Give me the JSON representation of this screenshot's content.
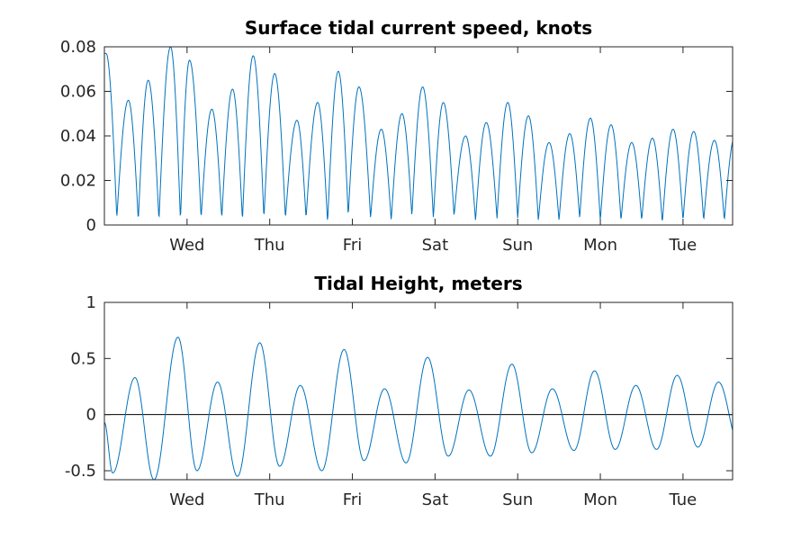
{
  "chart_data": [
    {
      "type": "line",
      "title": "Surface tidal current speed, knots",
      "xlabel": "",
      "ylabel": "",
      "ylim": [
        0,
        0.08
      ],
      "yticks": [
        "0",
        "0.02",
        "0.04",
        "0.06",
        "0.08"
      ],
      "xlim_days": [
        0,
        7.6
      ],
      "xticks": [
        {
          "label": "Wed",
          "day": 1
        },
        {
          "label": "Thu",
          "day": 2
        },
        {
          "label": "Fri",
          "day": 3
        },
        {
          "label": "Sat",
          "day": 4
        },
        {
          "label": "Sun",
          "day": 5
        },
        {
          "label": "Mon",
          "day": 6
        },
        {
          "label": "Tue",
          "day": 7
        }
      ],
      "grid": false,
      "color": "#0072bd",
      "series": [
        {
          "peaks": [
            {
              "day": 0.02,
              "value": 0.077
            },
            {
              "day": 0.29,
              "value": 0.056
            },
            {
              "day": 0.53,
              "value": 0.065
            },
            {
              "day": 0.8,
              "value": 0.08
            },
            {
              "day": 1.03,
              "value": 0.074
            },
            {
              "day": 1.3,
              "value": 0.052
            },
            {
              "day": 1.55,
              "value": 0.061
            },
            {
              "day": 1.8,
              "value": 0.076
            },
            {
              "day": 2.06,
              "value": 0.068
            },
            {
              "day": 2.33,
              "value": 0.047
            },
            {
              "day": 2.58,
              "value": 0.055
            },
            {
              "day": 2.83,
              "value": 0.069
            },
            {
              "day": 3.08,
              "value": 0.062
            },
            {
              "day": 3.35,
              "value": 0.043
            },
            {
              "day": 3.6,
              "value": 0.05
            },
            {
              "day": 3.85,
              "value": 0.062
            },
            {
              "day": 4.1,
              "value": 0.055
            },
            {
              "day": 4.37,
              "value": 0.04
            },
            {
              "day": 4.62,
              "value": 0.046
            },
            {
              "day": 4.88,
              "value": 0.055
            },
            {
              "day": 5.13,
              "value": 0.049
            },
            {
              "day": 5.38,
              "value": 0.037
            },
            {
              "day": 5.63,
              "value": 0.041
            },
            {
              "day": 5.88,
              "value": 0.048
            },
            {
              "day": 6.13,
              "value": 0.045
            },
            {
              "day": 6.38,
              "value": 0.037
            },
            {
              "day": 6.63,
              "value": 0.039
            },
            {
              "day": 6.88,
              "value": 0.043
            },
            {
              "day": 7.13,
              "value": 0.042
            },
            {
              "day": 7.38,
              "value": 0.038
            },
            {
              "day": 7.63,
              "value": 0.04
            }
          ],
          "minima": [
            {
              "day": 0.15,
              "value": 0.003
            },
            {
              "day": 0.41,
              "value": 0.002
            },
            {
              "day": 0.66,
              "value": 0.002
            },
            {
              "day": 0.92,
              "value": 0.002
            },
            {
              "day": 1.17,
              "value": 0.003
            },
            {
              "day": 1.42,
              "value": 0.003
            },
            {
              "day": 1.67,
              "value": 0.002
            },
            {
              "day": 1.93,
              "value": 0.003
            },
            {
              "day": 2.19,
              "value": 0.003
            },
            {
              "day": 2.44,
              "value": 0.003
            },
            {
              "day": 2.7,
              "value": 0.001
            },
            {
              "day": 2.95,
              "value": 0.004
            },
            {
              "day": 3.22,
              "value": 0.003
            },
            {
              "day": 3.47,
              "value": 0.002
            },
            {
              "day": 3.72,
              "value": 0.004
            },
            {
              "day": 3.98,
              "value": 0.003
            },
            {
              "day": 4.23,
              "value": 0.004
            },
            {
              "day": 4.49,
              "value": 0.002
            },
            {
              "day": 4.75,
              "value": 0.003
            },
            {
              "day": 5.0,
              "value": 0.003
            },
            {
              "day": 5.25,
              "value": 0.002
            },
            {
              "day": 5.5,
              "value": 0.002
            },
            {
              "day": 5.75,
              "value": 0.003
            },
            {
              "day": 6.0,
              "value": 0.002
            },
            {
              "day": 6.25,
              "value": 0.002
            },
            {
              "day": 6.5,
              "value": 0.002
            },
            {
              "day": 6.75,
              "value": 0.001
            },
            {
              "day": 7.0,
              "value": 0.002
            },
            {
              "day": 7.25,
              "value": 0.002
            },
            {
              "day": 7.5,
              "value": 0.002
            }
          ],
          "end_value": 0.028
        }
      ]
    },
    {
      "type": "line",
      "title": "Tidal Height, meters",
      "xlabel": "",
      "ylabel": "",
      "ylim": [
        -0.58,
        1
      ],
      "yticks": [
        {
          "label": "-0.5",
          "value": -0.5
        },
        {
          "label": "0",
          "value": 0
        },
        {
          "label": "0.5",
          "value": 0.5
        },
        {
          "label": "1",
          "value": 1
        }
      ],
      "xlim_days": [
        0,
        7.6
      ],
      "xticks": [
        {
          "label": "Wed",
          "day": 1
        },
        {
          "label": "Thu",
          "day": 2
        },
        {
          "label": "Fri",
          "day": 3
        },
        {
          "label": "Sat",
          "day": 4
        },
        {
          "label": "Sun",
          "day": 5
        },
        {
          "label": "Mon",
          "day": 6
        },
        {
          "label": "Tue",
          "day": 7
        }
      ],
      "zero_line": true,
      "grid": false,
      "color": "#0072bd",
      "series": [
        {
          "start_value": -0.07,
          "extrema": [
            {
              "day": 0.1,
              "value": -0.52
            },
            {
              "day": 0.37,
              "value": 0.33
            },
            {
              "day": 0.6,
              "value": -0.58
            },
            {
              "day": 0.89,
              "value": 0.69
            },
            {
              "day": 1.12,
              "value": -0.5
            },
            {
              "day": 1.37,
              "value": 0.29
            },
            {
              "day": 1.61,
              "value": -0.55
            },
            {
              "day": 1.88,
              "value": 0.64
            },
            {
              "day": 2.12,
              "value": -0.46
            },
            {
              "day": 2.37,
              "value": 0.26
            },
            {
              "day": 2.63,
              "value": -0.5
            },
            {
              "day": 2.9,
              "value": 0.58
            },
            {
              "day": 3.14,
              "value": -0.41
            },
            {
              "day": 3.39,
              "value": 0.23
            },
            {
              "day": 3.65,
              "value": -0.43
            },
            {
              "day": 3.91,
              "value": 0.51
            },
            {
              "day": 4.16,
              "value": -0.37
            },
            {
              "day": 4.41,
              "value": 0.22
            },
            {
              "day": 4.67,
              "value": -0.37
            },
            {
              "day": 4.93,
              "value": 0.45
            },
            {
              "day": 5.17,
              "value": -0.34
            },
            {
              "day": 5.42,
              "value": 0.23
            },
            {
              "day": 5.68,
              "value": -0.32
            },
            {
              "day": 5.93,
              "value": 0.39
            },
            {
              "day": 6.18,
              "value": -0.31
            },
            {
              "day": 6.43,
              "value": 0.26
            },
            {
              "day": 6.68,
              "value": -0.31
            },
            {
              "day": 6.93,
              "value": 0.35
            },
            {
              "day": 7.18,
              "value": -0.29
            },
            {
              "day": 7.43,
              "value": 0.29
            },
            {
              "day": 7.68,
              "value": -0.27
            }
          ],
          "end_value": -0.12
        }
      ]
    }
  ]
}
